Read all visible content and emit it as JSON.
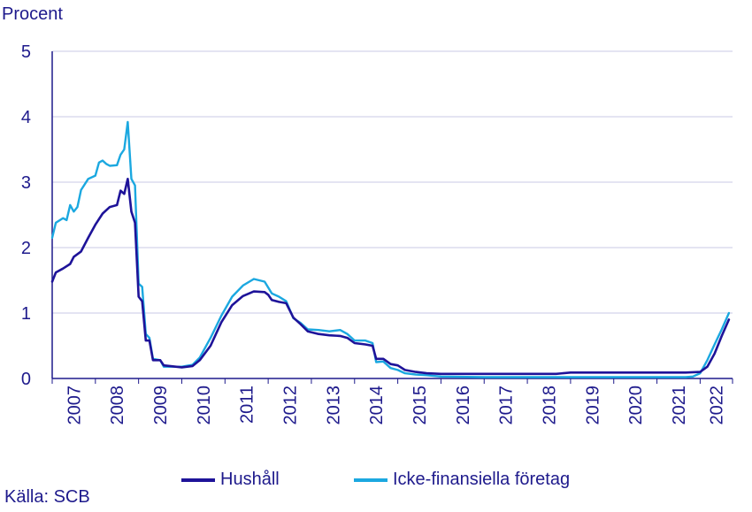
{
  "unit_label": "Procent",
  "source": "Källa: SCB",
  "colors": {
    "text": "#1e1a8c",
    "grid": "#c9c8e6",
    "axis": "#1e1a8c"
  },
  "chart_data": {
    "type": "line",
    "title": "",
    "ylabel": "Procent",
    "xlabel": "",
    "ylim": [
      0,
      5
    ],
    "yticks": [
      0,
      1,
      2,
      3,
      4,
      5
    ],
    "grid": true,
    "legend_position": "bottom",
    "x_start": "2007-01",
    "x_end": "2022-09",
    "x_ticks": [
      "2007",
      "2008",
      "2009",
      "2010",
      "2011",
      "2012",
      "2013",
      "2014",
      "2015",
      "2016",
      "2017",
      "2018",
      "2019",
      "2020",
      "2021",
      "2022"
    ],
    "series": [
      {
        "name": "Hushåll",
        "color": "#1e1399",
        "points": [
          [
            "2007-01",
            1.48
          ],
          [
            "2007-02",
            1.62
          ],
          [
            "2007-04",
            1.68
          ],
          [
            "2007-06",
            1.75
          ],
          [
            "2007-07",
            1.86
          ],
          [
            "2007-09",
            1.94
          ],
          [
            "2007-11",
            2.15
          ],
          [
            "2008-01",
            2.35
          ],
          [
            "2008-03",
            2.52
          ],
          [
            "2008-05",
            2.62
          ],
          [
            "2008-07",
            2.65
          ],
          [
            "2008-08",
            2.87
          ],
          [
            "2008-09",
            2.82
          ],
          [
            "2008-10",
            3.05
          ],
          [
            "2008-11",
            2.55
          ],
          [
            "2008-12",
            2.38
          ],
          [
            "2009-01",
            1.25
          ],
          [
            "2009-02",
            1.18
          ],
          [
            "2009-03",
            0.58
          ],
          [
            "2009-04",
            0.58
          ],
          [
            "2009-05",
            0.28
          ],
          [
            "2009-07",
            0.28
          ],
          [
            "2009-08",
            0.2
          ],
          [
            "2010-01",
            0.17
          ],
          [
            "2010-04",
            0.19
          ],
          [
            "2010-06",
            0.28
          ],
          [
            "2010-09",
            0.5
          ],
          [
            "2010-12",
            0.86
          ],
          [
            "2011-03",
            1.12
          ],
          [
            "2011-06",
            1.26
          ],
          [
            "2011-09",
            1.33
          ],
          [
            "2011-12",
            1.32
          ],
          [
            "2012-01",
            1.28
          ],
          [
            "2012-02",
            1.2
          ],
          [
            "2012-04",
            1.17
          ],
          [
            "2012-06",
            1.15
          ],
          [
            "2012-08",
            0.93
          ],
          [
            "2012-10",
            0.83
          ],
          [
            "2012-12",
            0.72
          ],
          [
            "2013-03",
            0.68
          ],
          [
            "2013-06",
            0.66
          ],
          [
            "2013-09",
            0.65
          ],
          [
            "2013-11",
            0.62
          ],
          [
            "2014-01",
            0.54
          ],
          [
            "2014-04",
            0.52
          ],
          [
            "2014-06",
            0.5
          ],
          [
            "2014-07",
            0.3
          ],
          [
            "2014-09",
            0.3
          ],
          [
            "2014-11",
            0.22
          ],
          [
            "2015-01",
            0.2
          ],
          [
            "2015-03",
            0.13
          ],
          [
            "2015-06",
            0.1
          ],
          [
            "2015-09",
            0.08
          ],
          [
            "2016-01",
            0.07
          ],
          [
            "2017-01",
            0.07
          ],
          [
            "2018-01",
            0.07
          ],
          [
            "2018-09",
            0.07
          ],
          [
            "2019-01",
            0.09
          ],
          [
            "2020-01",
            0.09
          ],
          [
            "2020-07",
            0.09
          ],
          [
            "2021-01",
            0.09
          ],
          [
            "2021-09",
            0.09
          ],
          [
            "2022-01",
            0.1
          ],
          [
            "2022-03",
            0.18
          ],
          [
            "2022-05",
            0.38
          ],
          [
            "2022-07",
            0.65
          ],
          [
            "2022-09",
            0.9
          ]
        ]
      },
      {
        "name": "Icke-finansiella företag",
        "color": "#1ba8e0",
        "points": [
          [
            "2007-01",
            2.15
          ],
          [
            "2007-02",
            2.38
          ],
          [
            "2007-04",
            2.45
          ],
          [
            "2007-05",
            2.42
          ],
          [
            "2007-06",
            2.65
          ],
          [
            "2007-07",
            2.55
          ],
          [
            "2007-08",
            2.62
          ],
          [
            "2007-09",
            2.88
          ],
          [
            "2007-11",
            3.05
          ],
          [
            "2008-01",
            3.1
          ],
          [
            "2008-02",
            3.3
          ],
          [
            "2008-03",
            3.33
          ],
          [
            "2008-04",
            3.28
          ],
          [
            "2008-05",
            3.25
          ],
          [
            "2008-07",
            3.26
          ],
          [
            "2008-08",
            3.42
          ],
          [
            "2008-09",
            3.5
          ],
          [
            "2008-10",
            3.92
          ],
          [
            "2008-11",
            3.05
          ],
          [
            "2008-12",
            2.95
          ],
          [
            "2009-01",
            1.45
          ],
          [
            "2009-02",
            1.4
          ],
          [
            "2009-03",
            0.68
          ],
          [
            "2009-04",
            0.62
          ],
          [
            "2009-05",
            0.3
          ],
          [
            "2009-07",
            0.28
          ],
          [
            "2009-08",
            0.18
          ],
          [
            "2010-01",
            0.18
          ],
          [
            "2010-04",
            0.21
          ],
          [
            "2010-06",
            0.32
          ],
          [
            "2010-09",
            0.62
          ],
          [
            "2010-12",
            0.96
          ],
          [
            "2011-03",
            1.25
          ],
          [
            "2011-06",
            1.42
          ],
          [
            "2011-09",
            1.52
          ],
          [
            "2011-12",
            1.48
          ],
          [
            "2012-02",
            1.3
          ],
          [
            "2012-04",
            1.25
          ],
          [
            "2012-06",
            1.18
          ],
          [
            "2012-08",
            0.92
          ],
          [
            "2012-10",
            0.85
          ],
          [
            "2012-12",
            0.75
          ],
          [
            "2013-03",
            0.74
          ],
          [
            "2013-06",
            0.72
          ],
          [
            "2013-09",
            0.74
          ],
          [
            "2013-11",
            0.68
          ],
          [
            "2014-01",
            0.58
          ],
          [
            "2014-04",
            0.58
          ],
          [
            "2014-06",
            0.54
          ],
          [
            "2014-07",
            0.25
          ],
          [
            "2014-09",
            0.26
          ],
          [
            "2014-11",
            0.16
          ],
          [
            "2015-01",
            0.13
          ],
          [
            "2015-03",
            0.08
          ],
          [
            "2015-06",
            0.06
          ],
          [
            "2015-09",
            0.05
          ],
          [
            "2016-01",
            0.03
          ],
          [
            "2017-01",
            0.02
          ],
          [
            "2018-01",
            0.02
          ],
          [
            "2019-01",
            0.02
          ],
          [
            "2020-01",
            0.02
          ],
          [
            "2021-01",
            0.02
          ],
          [
            "2021-09",
            0.02
          ],
          [
            "2021-11",
            0.03
          ],
          [
            "2022-01",
            0.08
          ],
          [
            "2022-03",
            0.28
          ],
          [
            "2022-05",
            0.52
          ],
          [
            "2022-07",
            0.75
          ],
          [
            "2022-09",
            1.0
          ]
        ]
      }
    ]
  }
}
